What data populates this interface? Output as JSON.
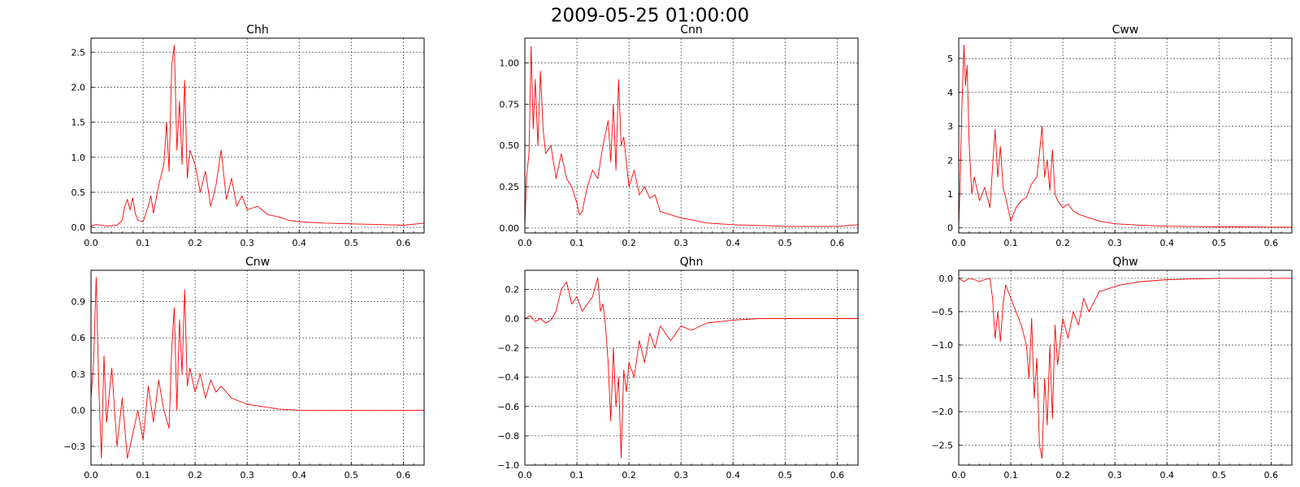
{
  "figure": {
    "title": "2009-05-25 01:00:00"
  },
  "colors": {
    "line": "#ff0000",
    "grid": "#555555",
    "frame": "#000000"
  },
  "chart_data": [
    {
      "type": "line",
      "title": "Chh",
      "xlabel": "",
      "ylabel": "",
      "xlim": [
        0,
        0.64
      ],
      "ylim": [
        -0.08,
        2.7
      ],
      "xticks": [
        0,
        0.1,
        0.2,
        0.3,
        0.4,
        0.5,
        0.6
      ],
      "xtick_labels": [
        "0.0",
        "0.1",
        "0.2",
        "0.3",
        "0.4",
        "0.5",
        "0.6"
      ],
      "yticks": [
        0,
        0.5,
        1.0,
        1.5,
        2.0,
        2.5
      ],
      "ytick_labels": [
        "0.0",
        "0.5",
        "1.0",
        "1.5",
        "2.0",
        "2.5"
      ],
      "grid": true,
      "legend": "none",
      "series": [
        {
          "x": [
            0,
            0.01,
            0.03,
            0.05,
            0.06,
            0.065,
            0.07,
            0.075,
            0.08,
            0.085,
            0.09,
            0.1,
            0.11,
            0.115,
            0.12,
            0.13,
            0.14,
            0.145,
            0.15,
            0.155,
            0.16,
            0.165,
            0.17,
            0.175,
            0.18,
            0.185,
            0.19,
            0.2,
            0.21,
            0.22,
            0.23,
            0.24,
            0.25,
            0.26,
            0.27,
            0.28,
            0.29,
            0.3,
            0.32,
            0.34,
            0.36,
            0.38,
            0.4,
            0.45,
            0.5,
            0.55,
            0.6,
            0.64
          ],
          "y": [
            0.02,
            0.04,
            0.02,
            0.03,
            0.1,
            0.3,
            0.4,
            0.25,
            0.42,
            0.2,
            0.1,
            0.08,
            0.3,
            0.45,
            0.2,
            0.6,
            0.9,
            1.5,
            0.8,
            2.3,
            2.6,
            1.1,
            1.8,
            0.9,
            2.1,
            0.7,
            1.1,
            0.9,
            0.5,
            0.8,
            0.3,
            0.6,
            1.1,
            0.4,
            0.7,
            0.3,
            0.45,
            0.25,
            0.3,
            0.18,
            0.15,
            0.1,
            0.08,
            0.06,
            0.05,
            0.04,
            0.03,
            0.06
          ]
        }
      ]
    },
    {
      "type": "line",
      "title": "Cnn",
      "xlabel": "",
      "ylabel": "",
      "xlim": [
        0,
        0.64
      ],
      "ylim": [
        -0.03,
        1.15
      ],
      "xticks": [
        0,
        0.1,
        0.2,
        0.3,
        0.4,
        0.5,
        0.6
      ],
      "xtick_labels": [
        "0.0",
        "0.1",
        "0.2",
        "0.3",
        "0.4",
        "0.5",
        "0.6"
      ],
      "yticks": [
        0,
        0.25,
        0.5,
        0.75,
        1.0
      ],
      "ytick_labels": [
        "0.00",
        "0.25",
        "0.50",
        "0.75",
        "1.00"
      ],
      "grid": true,
      "legend": "none",
      "series": [
        {
          "x": [
            0,
            0.003,
            0.008,
            0.012,
            0.016,
            0.02,
            0.025,
            0.03,
            0.035,
            0.04,
            0.05,
            0.06,
            0.07,
            0.08,
            0.09,
            0.1,
            0.105,
            0.11,
            0.12,
            0.13,
            0.14,
            0.15,
            0.16,
            0.165,
            0.17,
            0.175,
            0.18,
            0.185,
            0.19,
            0.2,
            0.21,
            0.22,
            0.23,
            0.24,
            0.25,
            0.26,
            0.28,
            0.3,
            0.32,
            0.35,
            0.4,
            0.45,
            0.5,
            0.55,
            0.6,
            0.64
          ],
          "y": [
            0.0,
            0.3,
            0.45,
            1.1,
            0.6,
            0.9,
            0.5,
            0.95,
            0.6,
            0.45,
            0.5,
            0.3,
            0.45,
            0.3,
            0.25,
            0.15,
            0.08,
            0.1,
            0.25,
            0.35,
            0.3,
            0.5,
            0.65,
            0.4,
            0.75,
            0.35,
            0.9,
            0.5,
            0.55,
            0.25,
            0.35,
            0.2,
            0.25,
            0.18,
            0.2,
            0.1,
            0.08,
            0.06,
            0.05,
            0.03,
            0.02,
            0.015,
            0.01,
            0.01,
            0.01,
            0.02
          ]
        }
      ]
    },
    {
      "type": "line",
      "title": "Cww",
      "xlabel": "",
      "ylabel": "",
      "xlim": [
        0,
        0.64
      ],
      "ylim": [
        -0.15,
        5.6
      ],
      "xticks": [
        0,
        0.1,
        0.2,
        0.3,
        0.4,
        0.5,
        0.6
      ],
      "xtick_labels": [
        "0.0",
        "0.1",
        "0.2",
        "0.3",
        "0.4",
        "0.5",
        "0.6"
      ],
      "yticks": [
        0,
        1,
        2,
        3,
        4,
        5
      ],
      "ytick_labels": [
        "0",
        "1",
        "2",
        "3",
        "4",
        "5"
      ],
      "grid": true,
      "legend": "none",
      "series": [
        {
          "x": [
            0,
            0.003,
            0.006,
            0.01,
            0.013,
            0.016,
            0.02,
            0.025,
            0.03,
            0.04,
            0.05,
            0.06,
            0.065,
            0.07,
            0.075,
            0.08,
            0.085,
            0.09,
            0.1,
            0.11,
            0.12,
            0.13,
            0.14,
            0.15,
            0.155,
            0.16,
            0.165,
            0.17,
            0.175,
            0.18,
            0.185,
            0.19,
            0.2,
            0.21,
            0.22,
            0.23,
            0.25,
            0.27,
            0.3,
            0.35,
            0.4,
            0.45,
            0.5,
            0.55,
            0.6,
            0.64
          ],
          "y": [
            0.0,
            1.5,
            3.5,
            5.4,
            4.2,
            4.8,
            2.5,
            1.0,
            1.5,
            0.8,
            1.2,
            0.6,
            1.8,
            2.9,
            1.5,
            2.4,
            1.2,
            0.9,
            0.2,
            0.6,
            0.8,
            0.9,
            1.3,
            1.5,
            2.2,
            3.0,
            1.5,
            2.0,
            1.1,
            2.3,
            1.0,
            0.8,
            0.6,
            0.7,
            0.5,
            0.4,
            0.3,
            0.2,
            0.12,
            0.08,
            0.05,
            0.04,
            0.03,
            0.03,
            0.02,
            0.02
          ]
        }
      ]
    },
    {
      "type": "line",
      "title": "Cnw",
      "xlabel": "",
      "ylabel": "",
      "xlim": [
        0,
        0.64
      ],
      "ylim": [
        -0.455,
        1.16
      ],
      "xticks": [
        0,
        0.1,
        0.2,
        0.3,
        0.4,
        0.5,
        0.6
      ],
      "xtick_labels": [
        "0.0",
        "0.1",
        "0.2",
        "0.3",
        "0.4",
        "0.5",
        "0.6"
      ],
      "yticks": [
        -0.3,
        0,
        0.3,
        0.6,
        0.9
      ],
      "ytick_labels": [
        "−0.3",
        "0.0",
        "0.3",
        "0.6",
        "0.9"
      ],
      "grid": true,
      "legend": "none",
      "series": [
        {
          "x": [
            0,
            0.005,
            0.01,
            0.015,
            0.02,
            0.025,
            0.03,
            0.04,
            0.05,
            0.06,
            0.07,
            0.08,
            0.09,
            0.1,
            0.11,
            0.12,
            0.13,
            0.14,
            0.15,
            0.155,
            0.16,
            0.165,
            0.17,
            0.175,
            0.18,
            0.185,
            0.19,
            0.2,
            0.21,
            0.22,
            0.23,
            0.24,
            0.25,
            0.27,
            0.3,
            0.33,
            0.36,
            0.4,
            0.45,
            0.5,
            0.55,
            0.6,
            0.64
          ],
          "y": [
            0.1,
            0.4,
            1.1,
            0.2,
            -0.4,
            0.45,
            -0.1,
            0.35,
            -0.3,
            0.1,
            -0.4,
            -0.2,
            0.0,
            -0.25,
            0.2,
            -0.1,
            0.25,
            0.0,
            -0.15,
            0.5,
            0.85,
            0.0,
            0.75,
            0.3,
            1.0,
            0.2,
            0.35,
            0.15,
            0.3,
            0.1,
            0.25,
            0.15,
            0.2,
            0.1,
            0.05,
            0.03,
            0.01,
            0.0,
            0.0,
            0.0,
            0.0,
            0.0,
            0.0
          ]
        }
      ]
    },
    {
      "type": "line",
      "title": "Qhn",
      "xlabel": "",
      "ylabel": "",
      "xlim": [
        0,
        0.64
      ],
      "ylim": [
        -1.0,
        0.33
      ],
      "xticks": [
        0,
        0.1,
        0.2,
        0.3,
        0.4,
        0.5,
        0.6
      ],
      "xtick_labels": [
        "0.0",
        "0.1",
        "0.2",
        "0.3",
        "0.4",
        "0.5",
        "0.6"
      ],
      "yticks": [
        -1.0,
        -0.8,
        -0.6,
        -0.4,
        -0.2,
        0,
        0.2
      ],
      "ytick_labels": [
        "−1.0",
        "−0.8",
        "−0.6",
        "−0.4",
        "−0.2",
        "0.0",
        "0.2"
      ],
      "grid": true,
      "legend": "none",
      "series": [
        {
          "x": [
            0,
            0.01,
            0.02,
            0.03,
            0.04,
            0.05,
            0.06,
            0.07,
            0.08,
            0.09,
            0.1,
            0.11,
            0.12,
            0.13,
            0.14,
            0.145,
            0.15,
            0.155,
            0.16,
            0.165,
            0.17,
            0.175,
            0.18,
            0.185,
            0.19,
            0.195,
            0.2,
            0.21,
            0.22,
            0.23,
            0.24,
            0.25,
            0.26,
            0.28,
            0.3,
            0.32,
            0.35,
            0.4,
            0.45,
            0.5,
            0.55,
            0.6,
            0.64
          ],
          "y": [
            0.0,
            0.02,
            -0.02,
            0.0,
            -0.03,
            -0.01,
            0.05,
            0.2,
            0.25,
            0.1,
            0.15,
            0.05,
            0.1,
            0.15,
            0.28,
            0.05,
            0.1,
            -0.05,
            -0.3,
            -0.7,
            -0.2,
            -0.6,
            -0.4,
            -0.95,
            -0.35,
            -0.5,
            -0.3,
            -0.4,
            -0.15,
            -0.3,
            -0.1,
            -0.2,
            -0.05,
            -0.15,
            -0.05,
            -0.08,
            -0.03,
            -0.01,
            0.0,
            0.0,
            0.0,
            0.0,
            0.0
          ]
        }
      ]
    },
    {
      "type": "line",
      "title": "Qhw",
      "xlabel": "",
      "ylabel": "",
      "xlim": [
        0,
        0.64
      ],
      "ylim": [
        -2.8,
        0.12
      ],
      "xticks": [
        0,
        0.1,
        0.2,
        0.3,
        0.4,
        0.5,
        0.6
      ],
      "xtick_labels": [
        "0.0",
        "0.1",
        "0.2",
        "0.3",
        "0.4",
        "0.5",
        "0.6"
      ],
      "yticks": [
        -2.5,
        -2.0,
        -1.5,
        -1.0,
        -0.5,
        0
      ],
      "ytick_labels": [
        "−2.5",
        "−2.0",
        "−1.5",
        "−1.0",
        "−0.5",
        "0.0"
      ],
      "grid": true,
      "legend": "none",
      "series": [
        {
          "x": [
            0,
            0.01,
            0.02,
            0.03,
            0.04,
            0.05,
            0.06,
            0.065,
            0.07,
            0.075,
            0.08,
            0.085,
            0.09,
            0.1,
            0.11,
            0.12,
            0.13,
            0.135,
            0.14,
            0.145,
            0.15,
            0.155,
            0.16,
            0.165,
            0.17,
            0.175,
            0.18,
            0.185,
            0.19,
            0.2,
            0.21,
            0.22,
            0.23,
            0.24,
            0.25,
            0.27,
            0.29,
            0.31,
            0.35,
            0.4,
            0.45,
            0.5,
            0.55,
            0.6,
            0.64
          ],
          "y": [
            0.0,
            -0.05,
            0.0,
            -0.02,
            -0.05,
            -0.02,
            0.0,
            -0.3,
            -0.9,
            -0.5,
            -0.95,
            -0.4,
            -0.1,
            -0.3,
            -0.5,
            -0.7,
            -1.0,
            -1.5,
            -0.6,
            -1.8,
            -1.2,
            -2.5,
            -2.7,
            -1.5,
            -2.2,
            -1.0,
            -2.1,
            -0.7,
            -1.3,
            -0.6,
            -0.9,
            -0.5,
            -0.7,
            -0.3,
            -0.5,
            -0.2,
            -0.15,
            -0.1,
            -0.05,
            -0.02,
            -0.01,
            0.0,
            0.0,
            0.0,
            0.0
          ]
        }
      ]
    }
  ]
}
